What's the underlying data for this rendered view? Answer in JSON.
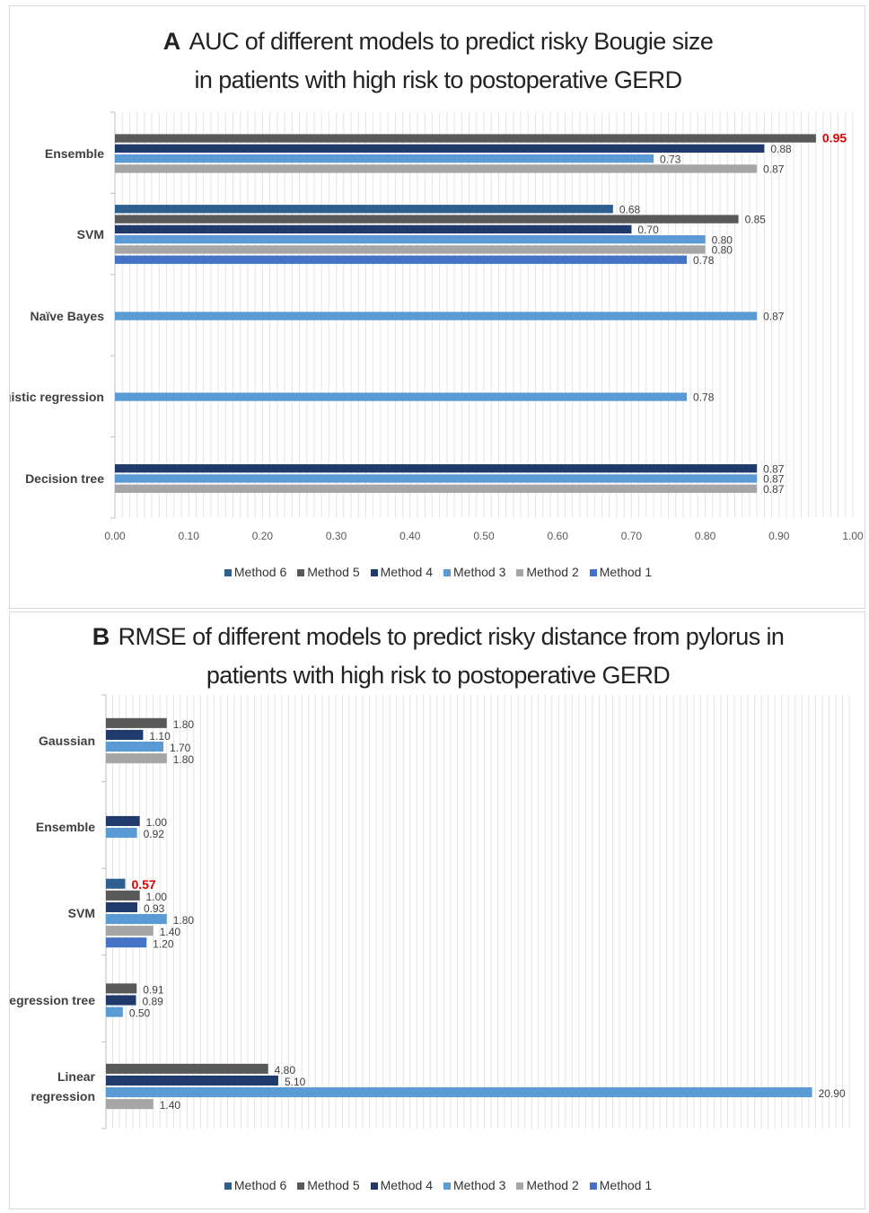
{
  "series": [
    {
      "name": "Method 6",
      "color": "#2e5f8f"
    },
    {
      "name": "Method 5",
      "color": "#595959"
    },
    {
      "name": "Method 4",
      "color": "#203a6b"
    },
    {
      "name": "Method 3",
      "color": "#5b9bd5"
    },
    {
      "name": "Method 2",
      "color": "#a6a6a6"
    },
    {
      "name": "Method 1",
      "color": "#4472c4"
    }
  ],
  "highlight_color": "#e00000",
  "chart_data": [
    {
      "type": "bar",
      "orientation": "horizontal",
      "panel_letter": "A",
      "title_line1": "AUC of different models to predict risky Bougie size",
      "title_line2": "in patients with high risk to postoperative GERD",
      "xlim": [
        0,
        1.0
      ],
      "xticks": [
        "0.00",
        "0.10",
        "0.20",
        "0.30",
        "0.40",
        "0.50",
        "0.60",
        "0.70",
        "0.80",
        "0.90",
        "1.00"
      ],
      "grid": "vertical minor gridlines",
      "legend_position": "bottom",
      "categories": [
        {
          "label": "Ensemble",
          "bars": [
            {
              "method": "Method 5",
              "value": 0.95,
              "label": "0.95",
              "highlight": true
            },
            {
              "method": "Method 4",
              "value": 0.88,
              "label": "0.88"
            },
            {
              "method": "Method 3",
              "value": 0.73,
              "label": "0.73"
            },
            {
              "method": "Method 2",
              "value": 0.87,
              "label": "0.87"
            }
          ]
        },
        {
          "label": "SVM",
          "bars": [
            {
              "method": "Method 6",
              "value": 0.675,
              "label": "0.68"
            },
            {
              "method": "Method 5",
              "value": 0.845,
              "label": "0.85"
            },
            {
              "method": "Method 4",
              "value": 0.7,
              "label": "0.70"
            },
            {
              "method": "Method 3",
              "value": 0.8,
              "label": "0.80"
            },
            {
              "method": "Method 2",
              "value": 0.8,
              "label": "0.80"
            },
            {
              "method": "Method 1",
              "value": 0.775,
              "label": "0.78"
            }
          ]
        },
        {
          "label": "Naïve Bayes",
          "bars": [
            {
              "method": "Method 3",
              "value": 0.87,
              "label": "0.87"
            }
          ]
        },
        {
          "label": "Logistic regression",
          "bars": [
            {
              "method": "Method 3",
              "value": 0.775,
              "label": "0.78"
            }
          ]
        },
        {
          "label": "Decision tree",
          "bars": [
            {
              "method": "Method 4",
              "value": 0.87,
              "label": "0.87"
            },
            {
              "method": "Method 3",
              "value": 0.87,
              "label": "0.87"
            },
            {
              "method": "Method 2",
              "value": 0.87,
              "label": "0.87"
            }
          ]
        }
      ]
    },
    {
      "type": "bar",
      "orientation": "horizontal",
      "panel_letter": "B",
      "title_line1": "RMSE of different models to predict risky distance from pylorus in",
      "title_line2": "patients with high risk to postoperative GERD",
      "xlim": [
        0,
        22
      ],
      "grid": "vertical minor gridlines",
      "legend_position": "bottom",
      "categories": [
        {
          "label": "Gaussian",
          "bars": [
            {
              "method": "Method 5",
              "value": 1.8,
              "label": "1.80"
            },
            {
              "method": "Method 4",
              "value": 1.1,
              "label": "1.10"
            },
            {
              "method": "Method 3",
              "value": 1.7,
              "label": "1.70"
            },
            {
              "method": "Method 2",
              "value": 1.8,
              "label": "1.80"
            }
          ]
        },
        {
          "label": "Ensemble",
          "bars": [
            {
              "method": "Method 4",
              "value": 1.0,
              "label": "1.00"
            },
            {
              "method": "Method 3",
              "value": 0.92,
              "label": "0.92"
            }
          ]
        },
        {
          "label": "SVM",
          "bars": [
            {
              "method": "Method 6",
              "value": 0.57,
              "label": "0.57",
              "highlight": true
            },
            {
              "method": "Method 5",
              "value": 1.0,
              "label": "1.00"
            },
            {
              "method": "Method 4",
              "value": 0.93,
              "label": "0.93"
            },
            {
              "method": "Method 3",
              "value": 1.8,
              "label": "1.80"
            },
            {
              "method": "Method 2",
              "value": 1.4,
              "label": "1.40"
            },
            {
              "method": "Method 1",
              "value": 1.2,
              "label": "1.20"
            }
          ]
        },
        {
          "label": "Regression tree",
          "bars": [
            {
              "method": "Method 5",
              "value": 0.91,
              "label": "0.91"
            },
            {
              "method": "Method 4",
              "value": 0.89,
              "label": "0.89"
            },
            {
              "method": "Method 3",
              "value": 0.5,
              "label": "0.50"
            }
          ]
        },
        {
          "label": "Linear regression",
          "label_lines": [
            "Linear",
            "regression"
          ],
          "bars": [
            {
              "method": "Method 5",
              "value": 4.8,
              "label": "4.80"
            },
            {
              "method": "Method 4",
              "value": 5.1,
              "label": "5.10"
            },
            {
              "method": "Method 3",
              "value": 20.9,
              "label": "20.90"
            },
            {
              "method": "Method 2",
              "value": 1.4,
              "label": "1.40"
            }
          ]
        }
      ]
    }
  ]
}
